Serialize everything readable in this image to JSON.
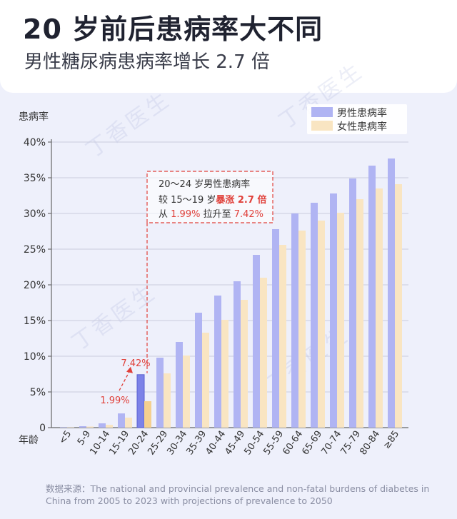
{
  "header": {
    "title": "20 岁前后患病率大不同",
    "subtitle": "男性糖尿病患病率增长 2.7 倍"
  },
  "watermark": "丁香医生",
  "footnote": {
    "prefix": "数据来源：",
    "text": "The national and provincial prevalence and non-fatal burdens of diabetes in China from 2005 to 2023 with projections of prevalence to 2050"
  },
  "colors": {
    "male": "#b0b4f3",
    "female": "#f9e5c2",
    "highlight_male": "#7c82e8",
    "highlight_female": "#f5d08f",
    "accent": "#e0403a"
  },
  "chart_data": {
    "type": "bar",
    "ylabel": "患病率",
    "xlabel": "年龄",
    "ylim": [
      0,
      40
    ],
    "yticks": [
      "0",
      "5%",
      "10%",
      "15%",
      "20%",
      "25%",
      "30%",
      "35%",
      "40%"
    ],
    "categories": [
      "<5",
      "5-9",
      "10-14",
      "15-19",
      "20-24",
      "25-29",
      "30-34",
      "35-39",
      "40-44",
      "45-49",
      "50-54",
      "55-59",
      "60-64",
      "65-69",
      "70-74",
      "75-79",
      "80-84",
      "≥85"
    ],
    "legend_position": "top-right",
    "series": [
      {
        "name": "男性患病率",
        "values": [
          0.05,
          0.2,
          0.6,
          1.99,
          7.42,
          9.8,
          12.0,
          16.1,
          18.5,
          20.5,
          24.2,
          27.8,
          30.0,
          31.5,
          32.8,
          34.9,
          36.7,
          37.7
        ]
      },
      {
        "name": "女性患病率",
        "values": [
          0.05,
          0.15,
          0.4,
          1.4,
          3.7,
          7.6,
          10.1,
          13.3,
          15.1,
          17.9,
          21.0,
          25.6,
          27.6,
          29.0,
          30.1,
          32.0,
          33.5,
          34.1
        ]
      }
    ],
    "highlight_index": 4,
    "annotations": {
      "label_15_19": "1.99%",
      "label_20_24": "7.42%",
      "box_line1": "20～24 岁男性患病率",
      "box_line2_a": "较 15～19 岁",
      "box_line2_b": "暴涨 2.7 倍",
      "box_line3_a": "从 ",
      "box_line3_b": "1.99%",
      "box_line3_c": " 拉升至 ",
      "box_line3_d": "7.42%"
    }
  }
}
